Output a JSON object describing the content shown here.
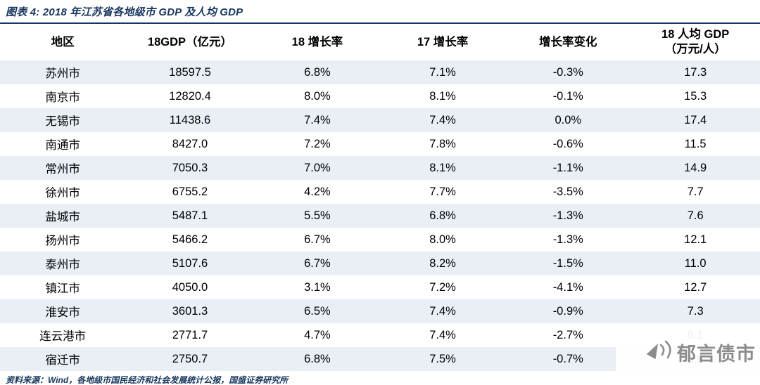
{
  "figure": {
    "title": "图表 4:  2018 年江苏省各地级市 GDP 及人均 GDP",
    "source": "资料来源：Wind，各地级市国民经济和社会发展统计公报，国盛证券研究所"
  },
  "watermark": {
    "text": "郁言债市",
    "icon": "megaphone-icon"
  },
  "colors": {
    "navy": "#17365D",
    "row_alt": "#E9EFF5",
    "watermark_gray": "#8C8C8C"
  },
  "chart_data": {
    "type": "table",
    "title": "2018 年江苏省各地级市 GDP 及人均 GDP",
    "columns": [
      "地区",
      "18GDP（亿元）",
      "18 增长率",
      "17 增长率",
      "增长率变化",
      "18 人均 GDP\n（万元/人）"
    ],
    "rows": [
      [
        "苏州市",
        "18597.5",
        "6.8%",
        "7.1%",
        "-0.3%",
        "17.3"
      ],
      [
        "南京市",
        "12820.4",
        "8.0%",
        "8.1%",
        "-0.1%",
        "15.3"
      ],
      [
        "无锡市",
        "11438.6",
        "7.4%",
        "7.4%",
        "0.0%",
        "17.4"
      ],
      [
        "南通市",
        "8427.0",
        "7.2%",
        "7.8%",
        "-0.6%",
        "11.5"
      ],
      [
        "常州市",
        "7050.3",
        "7.0%",
        "8.1%",
        "-1.1%",
        "14.9"
      ],
      [
        "徐州市",
        "6755.2",
        "4.2%",
        "7.7%",
        "-3.5%",
        "7.7"
      ],
      [
        "盐城市",
        "5487.1",
        "5.5%",
        "6.8%",
        "-1.3%",
        "7.6"
      ],
      [
        "扬州市",
        "5466.2",
        "6.7%",
        "8.0%",
        "-1.3%",
        "12.1"
      ],
      [
        "泰州市",
        "5107.6",
        "6.7%",
        "8.2%",
        "-1.5%",
        "11.0"
      ],
      [
        "镇江市",
        "4050.0",
        "3.1%",
        "7.2%",
        "-4.1%",
        "12.7"
      ],
      [
        "淮安市",
        "3601.3",
        "6.5%",
        "7.4%",
        "-0.9%",
        "7.3"
      ],
      [
        "连云港市",
        "2771.7",
        "4.7%",
        "7.4%",
        "-2.7%",
        "6.1"
      ],
      [
        "宿迁市",
        "2750.7",
        "6.8%",
        "7.5%",
        "-0.7%",
        "5.6"
      ]
    ]
  }
}
